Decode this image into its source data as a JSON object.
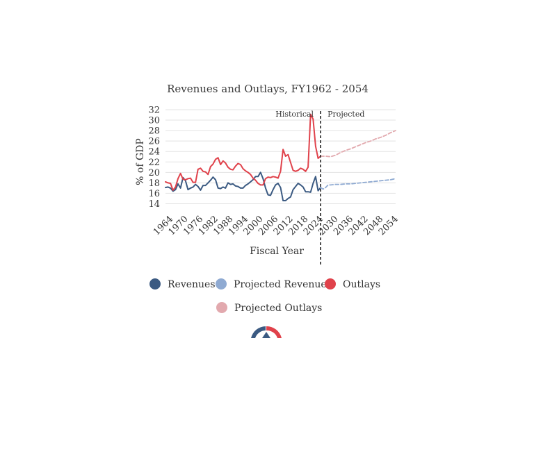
{
  "chart_data": {
    "type": "line",
    "title": "Revenues and Outlays, FY1962 - 2054",
    "xlabel": "Fiscal Year",
    "ylabel": "% of GDP",
    "xlim": [
      1962,
      2054
    ],
    "ylim": [
      13,
      32
    ],
    "x_ticks": [
      1964,
      1970,
      1976,
      1982,
      1988,
      1994,
      2000,
      2006,
      2012,
      2018,
      2024,
      2030,
      2036,
      2042,
      2048,
      2054
    ],
    "y_ticks": [
      14,
      16,
      18,
      20,
      22,
      24,
      26,
      28,
      30,
      32
    ],
    "grid": true,
    "legend_position": "bottom",
    "annotations": [
      {
        "text": "Historical",
        "x": 2024,
        "side": "left"
      },
      {
        "text": "Projected",
        "x": 2024,
        "side": "right"
      }
    ],
    "divider_x": 2024,
    "series": [
      {
        "name": "Revenues",
        "color": "#3b5a82",
        "style": "solid",
        "x": [
          1962,
          1963,
          1964,
          1965,
          1966,
          1967,
          1968,
          1969,
          1970,
          1971,
          1972,
          1973,
          1974,
          1975,
          1976,
          1977,
          1978,
          1979,
          1980,
          1981,
          1982,
          1983,
          1984,
          1985,
          1986,
          1987,
          1988,
          1989,
          1990,
          1991,
          1992,
          1993,
          1994,
          1995,
          1996,
          1997,
          1998,
          1999,
          2000,
          2001,
          2002,
          2003,
          2004,
          2005,
          2006,
          2007,
          2008,
          2009,
          2010,
          2011,
          2012,
          2013,
          2014,
          2015,
          2016,
          2017,
          2018,
          2019,
          2020,
          2021,
          2022,
          2023,
          2024
        ],
        "y": [
          17.1,
          17.2,
          17.0,
          16.4,
          16.7,
          17.8,
          17.0,
          19.0,
          18.4,
          16.7,
          17.0,
          17.2,
          17.7,
          17.3,
          16.6,
          17.5,
          17.5,
          18.0,
          18.5,
          19.1,
          18.6,
          17.0,
          16.9,
          17.2,
          17.0,
          18.0,
          17.7,
          17.8,
          17.4,
          17.3,
          17.0,
          17.0,
          17.5,
          17.8,
          18.2,
          18.6,
          19.2,
          19.2,
          20.0,
          18.8,
          17.0,
          15.7,
          15.6,
          16.7,
          17.6,
          17.9,
          17.1,
          14.6,
          14.6,
          15.0,
          15.3,
          16.7,
          17.3,
          17.9,
          17.6,
          17.2,
          16.3,
          16.3,
          16.2,
          17.9,
          19.2,
          16.5,
          17.1
        ]
      },
      {
        "name": "Projected Revenues",
        "color": "#8faad2",
        "style": "dashed",
        "x": [
          2024,
          2025,
          2026,
          2027,
          2028,
          2030,
          2032,
          2034,
          2036,
          2038,
          2040,
          2042,
          2044,
          2046,
          2048,
          2050,
          2052,
          2054
        ],
        "y": [
          17.1,
          16.8,
          17.1,
          17.6,
          17.6,
          17.7,
          17.7,
          17.8,
          17.8,
          17.9,
          18.0,
          18.1,
          18.2,
          18.3,
          18.4,
          18.5,
          18.6,
          18.8
        ]
      },
      {
        "name": "Outlays",
        "color": "#e0424b",
        "style": "solid",
        "x": [
          1962,
          1963,
          1964,
          1965,
          1966,
          1967,
          1968,
          1969,
          1970,
          1971,
          1972,
          1973,
          1974,
          1975,
          1976,
          1977,
          1978,
          1979,
          1980,
          1981,
          1982,
          1983,
          1984,
          1985,
          1986,
          1987,
          1988,
          1989,
          1990,
          1991,
          1992,
          1993,
          1994,
          1995,
          1996,
          1997,
          1998,
          1999,
          2000,
          2001,
          2002,
          2003,
          2004,
          2005,
          2006,
          2007,
          2008,
          2009,
          2010,
          2011,
          2012,
          2013,
          2014,
          2015,
          2016,
          2017,
          2018,
          2019,
          2020,
          2021,
          2022,
          2023,
          2024
        ],
        "y": [
          18.2,
          18.0,
          17.9,
          16.6,
          17.2,
          18.8,
          19.8,
          18.7,
          18.6,
          18.8,
          18.9,
          18.1,
          18.1,
          20.6,
          20.8,
          20.2,
          20.1,
          19.6,
          21.1,
          21.6,
          22.5,
          22.8,
          21.5,
          22.2,
          21.8,
          21.0,
          20.6,
          20.5,
          21.2,
          21.7,
          21.5,
          20.7,
          20.3,
          20.0,
          19.6,
          18.9,
          18.5,
          17.9,
          17.6,
          17.6,
          18.8,
          19.1,
          19.0,
          19.2,
          19.1,
          18.9,
          20.2,
          24.4,
          23.1,
          23.4,
          21.9,
          20.4,
          20.2,
          20.4,
          20.8,
          20.6,
          20.2,
          21.0,
          31.1,
          30.2,
          25.0,
          22.7,
          23.1
        ]
      },
      {
        "name": "Projected Outlays",
        "color": "#e2a9ae",
        "style": "dashed",
        "x": [
          2024,
          2026,
          2028,
          2030,
          2032,
          2034,
          2036,
          2038,
          2040,
          2042,
          2044,
          2046,
          2048,
          2050,
          2052,
          2054
        ],
        "y": [
          23.1,
          23.1,
          23.0,
          23.3,
          23.8,
          24.2,
          24.5,
          24.9,
          25.3,
          25.7,
          26.0,
          26.4,
          26.7,
          27.1,
          27.6,
          28.0
        ]
      }
    ]
  }
}
